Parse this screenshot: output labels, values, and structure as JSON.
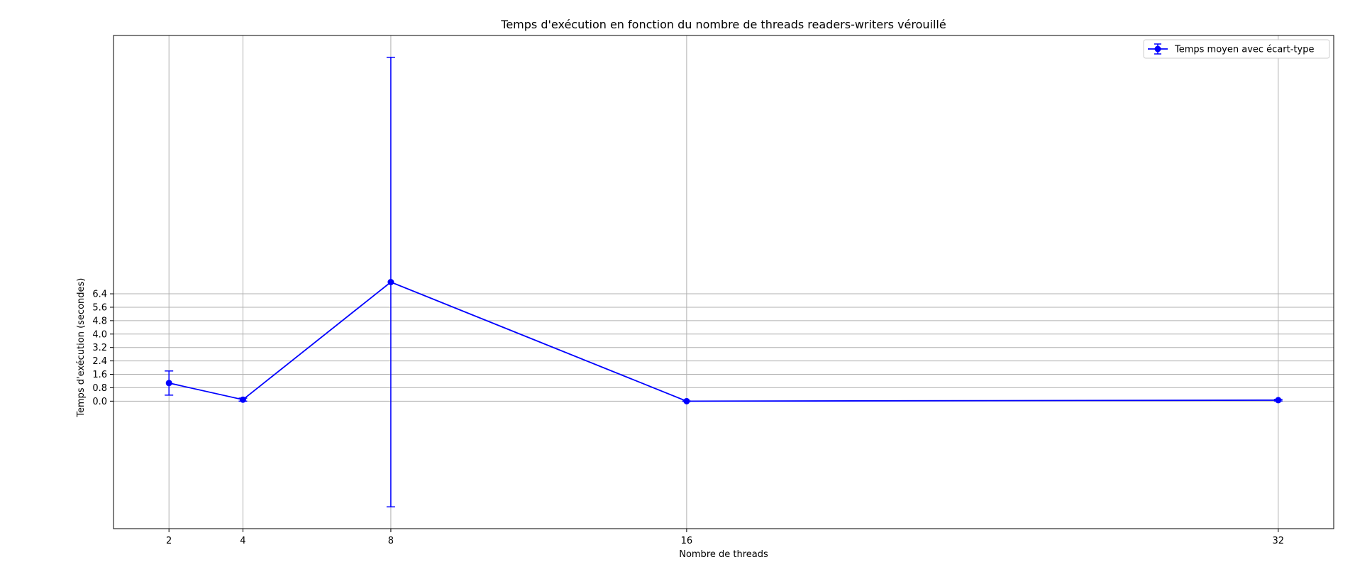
{
  "chart_data": {
    "type": "line",
    "title": "Temps d'exécution en fonction du nombre de threads readers-writers vérouillé",
    "xlabel": "Nombre de threads",
    "ylabel": "Temps d'exécution (secondes)",
    "x_ticks": [
      2,
      4,
      8,
      16,
      32
    ],
    "y_ticks": [
      0.0,
      0.8,
      1.6,
      2.4,
      3.2,
      4.0,
      4.8,
      5.6,
      6.4
    ],
    "y_tick_labels": [
      "0.0",
      "0.8",
      "1.6",
      "2.4",
      "3.2",
      "4.0",
      "4.8",
      "5.6",
      "6.4"
    ],
    "xlim": [
      0.5,
      33.5
    ],
    "ylim": [
      -7.6,
      21.8
    ],
    "grid": true,
    "legend_position": "top-right",
    "series": [
      {
        "name": "Temps moyen avec écart-type",
        "color": "#0000ff",
        "x": [
          2,
          4,
          8,
          16,
          32
        ],
        "y": [
          1.08,
          0.09,
          7.1,
          0.0,
          0.06
        ],
        "yerr": [
          0.72,
          0.09,
          13.4,
          0.01,
          0.05
        ]
      }
    ]
  }
}
